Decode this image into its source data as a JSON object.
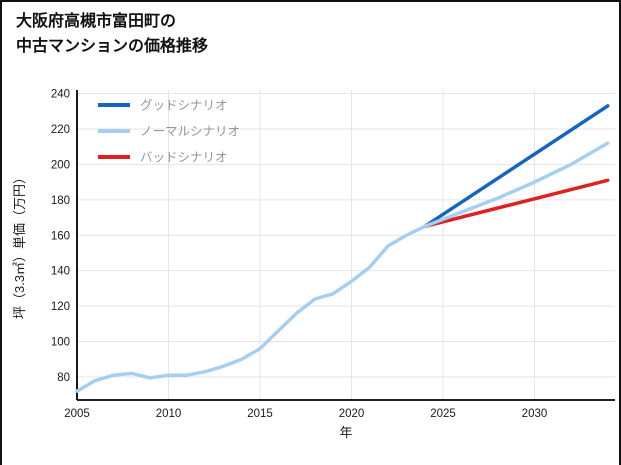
{
  "header": {
    "title_line1": "大阪府高槻市富田町の",
    "title_line2": "中古マンションの価格推移"
  },
  "chart_data": {
    "type": "line",
    "title": "大阪府高槻市富田町の中古マンションの価格推移",
    "xlabel": "年",
    "ylabel": "坪（3.3㎡）単価（万円）",
    "xlim": [
      2005,
      2034.4
    ],
    "ylim": [
      67,
      242
    ],
    "xticks": [
      2005,
      2010,
      2015,
      2020,
      2025,
      2030
    ],
    "yticks": [
      80,
      100,
      120,
      140,
      160,
      180,
      200,
      220,
      240
    ],
    "grid": true,
    "legend_position": "top-left",
    "colors": {
      "grid": "#e4e4e4",
      "axis": "#000000",
      "tick_text": "#1a1a1a",
      "legend_text": "#969696",
      "good": "#1565c0",
      "normal": "#a5cff2",
      "bad": "#e02020"
    },
    "series": [
      {
        "id": "good",
        "name": "グッドシナリオ",
        "color": "#1565c0",
        "width": 3.5,
        "legend": true,
        "z": 1,
        "x": [
          2024,
          2029,
          2034
        ],
        "y": [
          165,
          199,
          233
        ]
      },
      {
        "id": "normal",
        "name": "ノーマルシナリオ",
        "color": "#a5cff2",
        "width": 3.5,
        "legend": true,
        "z": 3,
        "x": [
          2005,
          2006,
          2007,
          2008,
          2009,
          2010,
          2011,
          2012,
          2013,
          2014,
          2015,
          2016,
          2017,
          2018,
          2019,
          2020,
          2021,
          2022,
          2023,
          2024,
          2026,
          2028,
          2030,
          2032,
          2034
        ],
        "y": [
          72,
          78,
          81,
          82,
          79.5,
          81,
          81,
          83,
          86,
          90,
          96,
          106,
          116,
          124,
          127,
          134,
          142,
          154,
          160,
          165,
          173,
          181,
          190,
          200,
          212
        ]
      },
      {
        "id": "bad",
        "name": "バッドシナリオ",
        "color": "#e02020",
        "width": 3.5,
        "legend": true,
        "z": 2,
        "x": [
          2024,
          2029,
          2034
        ],
        "y": [
          165,
          178,
          191
        ]
      }
    ]
  }
}
